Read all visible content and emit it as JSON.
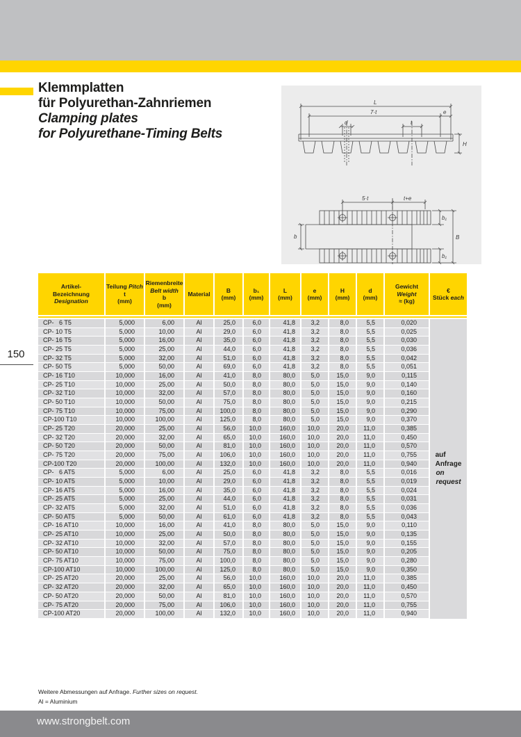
{
  "page": {
    "number": "150"
  },
  "colors": {
    "accent_yellow": "#ffd500",
    "top_bar_gray": "#bfc0c2",
    "footer_bar_gray": "#8a8a8d",
    "row_gray_dark": "#d8d8da",
    "row_gray_light": "#e1e1e3"
  },
  "title": {
    "de_line1": "Klemmplatten",
    "de_line2": "für Polyurethan-Zahnriemen",
    "en_line1": "Clamping plates",
    "en_line2": "for Polyurethane-Timing Belts"
  },
  "drawing": {
    "labels": {
      "L": "L",
      "seven_t": "7·t",
      "e": "e",
      "d": "d",
      "t": "t",
      "H": "H",
      "five_t": "5·t",
      "t_plus_e": "t+e",
      "b": "b",
      "B": "B",
      "b1_top": "b₁",
      "b1_bot": "b₁"
    }
  },
  "table": {
    "headers": [
      [
        [
          {
            "t": "Artikel-"
          }
        ],
        [
          {
            "t": "Bezeichnung"
          }
        ],
        [
          {
            "t": "Designation",
            "i": true
          }
        ]
      ],
      [
        [
          {
            "t": "Teilung "
          },
          {
            "t": "Pitch",
            "i": true
          }
        ],
        [
          {
            "t": "t"
          }
        ],
        [
          {
            "t": "(mm)"
          }
        ]
      ],
      [
        [
          {
            "t": "Riemenbreite"
          }
        ],
        [
          {
            "t": "Belt width",
            "i": true
          }
        ],
        [
          {
            "t": "b"
          }
        ],
        [
          {
            "t": "(mm)"
          }
        ]
      ],
      [
        [
          {
            "t": "Material"
          }
        ]
      ],
      [
        [
          {
            "t": "B"
          }
        ],
        [
          {
            "t": "(mm)"
          }
        ]
      ],
      [
        [
          {
            "t": "b₁"
          }
        ],
        [
          {
            "t": "(mm)"
          }
        ]
      ],
      [
        [
          {
            "t": "L"
          }
        ],
        [
          {
            "t": "(mm)"
          }
        ]
      ],
      [
        [
          {
            "t": "e"
          }
        ],
        [
          {
            "t": "(mm)"
          }
        ]
      ],
      [
        [
          {
            "t": "H"
          }
        ],
        [
          {
            "t": "(mm)"
          }
        ]
      ],
      [
        [
          {
            "t": "d"
          }
        ],
        [
          {
            "t": "(mm)"
          }
        ]
      ],
      [
        [
          {
            "t": "Gewicht"
          }
        ],
        [
          {
            "t": "Weight",
            "i": true
          }
        ],
        [
          {
            "t": "≈ (kg)"
          }
        ]
      ],
      [
        [
          {
            "t": "€"
          }
        ],
        [
          {
            "t": "Stück "
          },
          {
            "t": "each",
            "i": true
          }
        ]
      ]
    ],
    "rows": [
      [
        "CP-   6 T5",
        "5,000",
        "6,00",
        "Al",
        "25,0",
        "6,0",
        "41,8",
        "3,2",
        "8,0",
        "5,5",
        "0,020"
      ],
      [
        "CP- 10 T5",
        "5,000",
        "10,00",
        "Al",
        "29,0",
        "6,0",
        "41,8",
        "3,2",
        "8,0",
        "5,5",
        "0,025"
      ],
      [
        "CP- 16 T5",
        "5,000",
        "16,00",
        "Al",
        "35,0",
        "6,0",
        "41,8",
        "3,2",
        "8,0",
        "5,5",
        "0,030"
      ],
      [
        "CP- 25 T5",
        "5,000",
        "25,00",
        "Al",
        "44,0",
        "6,0",
        "41,8",
        "3,2",
        "8,0",
        "5,5",
        "0,036"
      ],
      [
        "CP- 32 T5",
        "5,000",
        "32,00",
        "Al",
        "51,0",
        "6,0",
        "41,8",
        "3,2",
        "8,0",
        "5,5",
        "0,042"
      ],
      [
        "CP- 50 T5",
        "5,000",
        "50,00",
        "Al",
        "69,0",
        "6,0",
        "41,8",
        "3,2",
        "8,0",
        "5,5",
        "0,051"
      ],
      [
        "CP- 16 T10",
        "10,000",
        "16,00",
        "Al",
        "41,0",
        "8,0",
        "80,0",
        "5,0",
        "15,0",
        "9,0",
        "0,115"
      ],
      [
        "CP- 25 T10",
        "10,000",
        "25,00",
        "Al",
        "50,0",
        "8,0",
        "80,0",
        "5,0",
        "15,0",
        "9,0",
        "0,140"
      ],
      [
        "CP- 32 T10",
        "10,000",
        "32,00",
        "Al",
        "57,0",
        "8,0",
        "80,0",
        "5,0",
        "15,0",
        "9,0",
        "0,160"
      ],
      [
        "CP- 50 T10",
        "10,000",
        "50,00",
        "Al",
        "75,0",
        "8,0",
        "80,0",
        "5,0",
        "15,0",
        "9,0",
        "0,215"
      ],
      [
        "CP- 75 T10",
        "10,000",
        "75,00",
        "Al",
        "100,0",
        "8,0",
        "80,0",
        "5,0",
        "15,0",
        "9,0",
        "0,290"
      ],
      [
        "CP-100 T10",
        "10,000",
        "100,00",
        "Al",
        "125,0",
        "8,0",
        "80,0",
        "5,0",
        "15,0",
        "9,0",
        "0,370"
      ],
      [
        "CP- 25 T20",
        "20,000",
        "25,00",
        "Al",
        "56,0",
        "10,0",
        "160,0",
        "10,0",
        "20,0",
        "11,0",
        "0,385"
      ],
      [
        "CP- 32 T20",
        "20,000",
        "32,00",
        "Al",
        "65,0",
        "10,0",
        "160,0",
        "10,0",
        "20,0",
        "11,0",
        "0,450"
      ],
      [
        "CP- 50 T20",
        "20,000",
        "50,00",
        "Al",
        "81,0",
        "10,0",
        "160,0",
        "10,0",
        "20,0",
        "11,0",
        "0,570"
      ],
      [
        "CP- 75 T20",
        "20,000",
        "75,00",
        "Al",
        "106,0",
        "10,0",
        "160,0",
        "10,0",
        "20,0",
        "11,0",
        "0,755"
      ],
      [
        "CP-100 T20",
        "20,000",
        "100,00",
        "Al",
        "132,0",
        "10,0",
        "160,0",
        "10,0",
        "20,0",
        "11,0",
        "0,940"
      ],
      [
        "CP-   6 AT5",
        "5,000",
        "6,00",
        "Al",
        "25,0",
        "6,0",
        "41,8",
        "3,2",
        "8,0",
        "5,5",
        "0,016"
      ],
      [
        "CP- 10 AT5",
        "5,000",
        "10,00",
        "Al",
        "29,0",
        "6,0",
        "41,8",
        "3,2",
        "8,0",
        "5,5",
        "0,019"
      ],
      [
        "CP- 16 AT5",
        "5,000",
        "16,00",
        "Al",
        "35,0",
        "6,0",
        "41,8",
        "3,2",
        "8,0",
        "5,5",
        "0,024"
      ],
      [
        "CP- 25 AT5",
        "5,000",
        "25,00",
        "Al",
        "44,0",
        "6,0",
        "41,8",
        "3,2",
        "8,0",
        "5,5",
        "0,031"
      ],
      [
        "CP- 32 AT5",
        "5,000",
        "32,00",
        "Al",
        "51,0",
        "6,0",
        "41,8",
        "3,2",
        "8,0",
        "5,5",
        "0,036"
      ],
      [
        "CP- 50 AT5",
        "5,000",
        "50,00",
        "Al",
        "61,0",
        "6,0",
        "41,8",
        "3,2",
        "8,0",
        "5,5",
        "0,043"
      ],
      [
        "CP- 16 AT10",
        "10,000",
        "16,00",
        "Al",
        "41,0",
        "8,0",
        "80,0",
        "5,0",
        "15,0",
        "9,0",
        "0,110"
      ],
      [
        "CP- 25 AT10",
        "10,000",
        "25,00",
        "Al",
        "50,0",
        "8,0",
        "80,0",
        "5,0",
        "15,0",
        "9,0",
        "0,135"
      ],
      [
        "CP- 32 AT10",
        "10,000",
        "32,00",
        "Al",
        "57,0",
        "8,0",
        "80,0",
        "5,0",
        "15,0",
        "9,0",
        "0,155"
      ],
      [
        "CP- 50 AT10",
        "10,000",
        "50,00",
        "Al",
        "75,0",
        "8,0",
        "80,0",
        "5,0",
        "15,0",
        "9,0",
        "0,205"
      ],
      [
        "CP- 75 AT10",
        "10,000",
        "75,00",
        "Al",
        "100,0",
        "8,0",
        "80,0",
        "5,0",
        "15,0",
        "9,0",
        "0,280"
      ],
      [
        "CP-100 AT10",
        "10,000",
        "100,00",
        "Al",
        "125,0",
        "8,0",
        "80,0",
        "5,0",
        "15,0",
        "9,0",
        "0,350"
      ],
      [
        "CP- 25 AT20",
        "20,000",
        "25,00",
        "Al",
        "56,0",
        "10,0",
        "160,0",
        "10,0",
        "20,0",
        "11,0",
        "0,385"
      ],
      [
        "CP- 32 AT20",
        "20,000",
        "32,00",
        "Al",
        "65,0",
        "10,0",
        "160,0",
        "10,0",
        "20,0",
        "11,0",
        "0,450"
      ],
      [
        "CP- 50 AT20",
        "20,000",
        "50,00",
        "Al",
        "81,0",
        "10,0",
        "160,0",
        "10,0",
        "20,0",
        "11,0",
        "0,570"
      ],
      [
        "CP- 75 AT20",
        "20,000",
        "75,00",
        "Al",
        "106,0",
        "10,0",
        "160,0",
        "10,0",
        "20,0",
        "11,0",
        "0,755"
      ],
      [
        "CP-100 AT20",
        "20,000",
        "100,00",
        "Al",
        "132,0",
        "10,0",
        "160,0",
        "10,0",
        "20,0",
        "11,0",
        "0,940"
      ]
    ],
    "price_note_de": [
      "auf",
      "Anfrage"
    ],
    "price_note_en": [
      "on",
      "request"
    ]
  },
  "footnotes": {
    "sizes_de": "Weitere Abmessungen auf Anfrage. ",
    "sizes_en": "Further sizes on request.",
    "material": "Al = Aluminium"
  },
  "footer": {
    "url": "www.strongbelt.com"
  }
}
